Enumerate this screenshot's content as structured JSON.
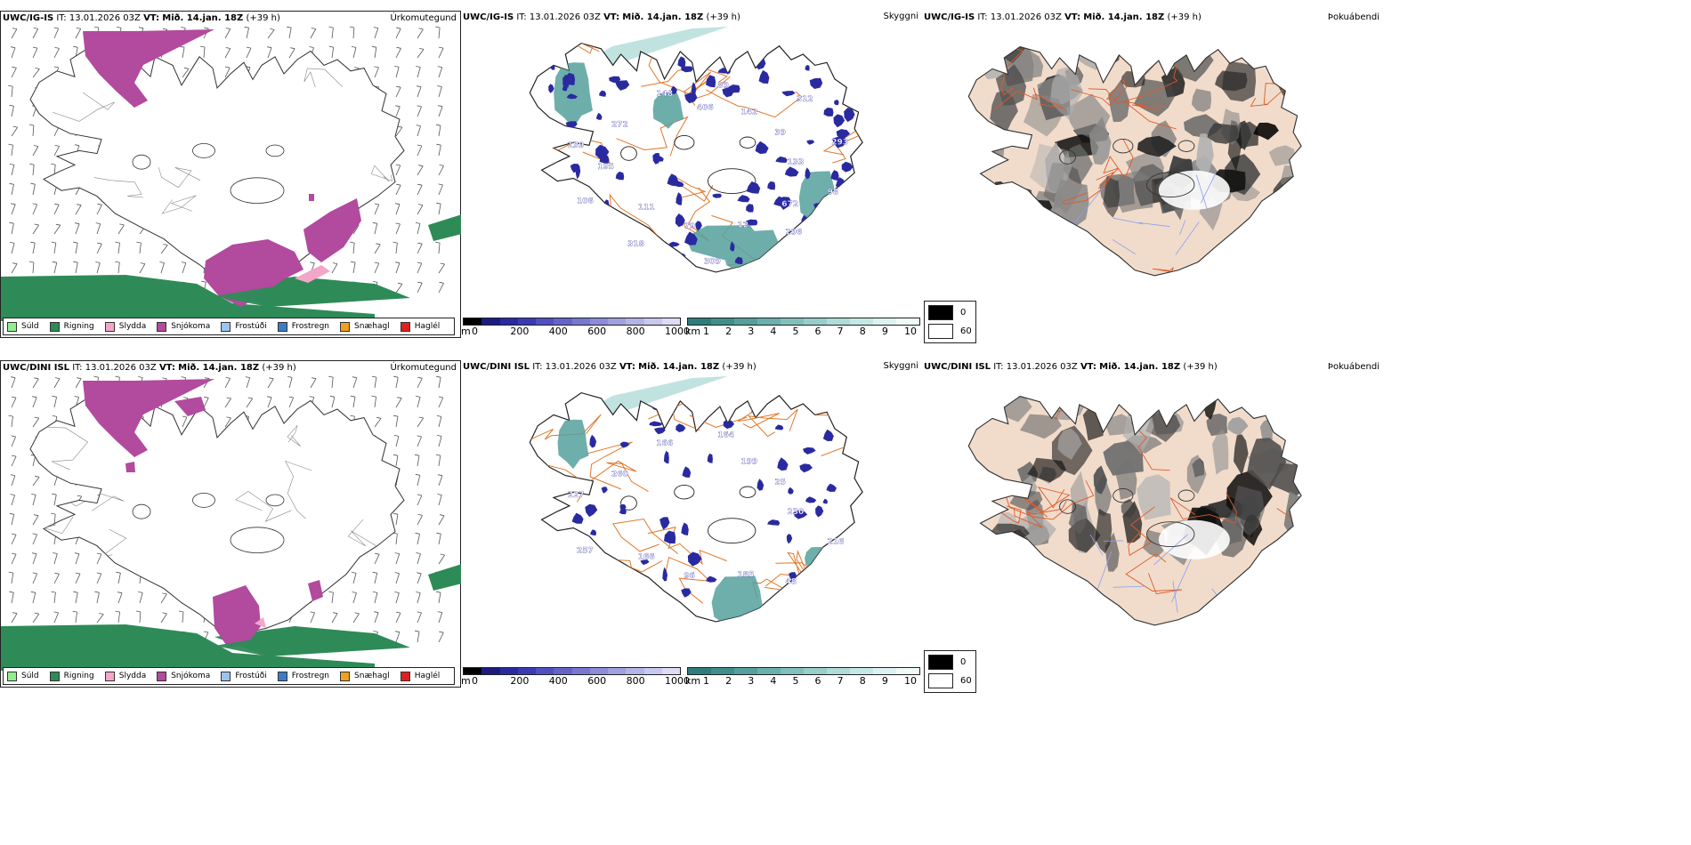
{
  "rows": [
    {
      "model": "UWC/IG-IS",
      "it_label": "IT:",
      "it_value": "13.01.2026 03Z",
      "vt_label": "VT:",
      "vt_value": "Mið. 14.jan. 18Z",
      "lead": "(+39 h)",
      "precip_labels": [
        "133",
        "111",
        "89",
        "296",
        "139",
        "39",
        "79",
        "148",
        "98",
        "106",
        "142",
        "12",
        "272",
        "293",
        "318",
        "406",
        "672",
        "195",
        "312",
        "309"
      ]
    },
    {
      "model": "UWC/DINI ISL",
      "it_label": "IT:",
      "it_value": "13.01.2026 03Z",
      "vt_label": "VT:",
      "vt_value": "Mið. 14.jan. 18Z",
      "lead": "(+39 h)",
      "precip_labels": [
        "230",
        "166",
        "164",
        "48",
        "227",
        "25",
        "96",
        "166",
        "216",
        "257",
        "199",
        "185",
        "260"
      ]
    }
  ],
  "panel_titles": {
    "precip_type": "Úrkomutegund",
    "cloud_base": "Skyggni",
    "fog": "Þokuábendi"
  },
  "precip_legend": [
    {
      "label": "Súld",
      "color": "#90ee90"
    },
    {
      "label": "Rigning",
      "color": "#2e8b57"
    },
    {
      "label": "Slydda",
      "color": "#f4a6c8"
    },
    {
      "label": "Snjókoma",
      "color": "#b24a9e"
    },
    {
      "label": "Frostúði",
      "color": "#9cc4ee"
    },
    {
      "label": "Frostregn",
      "color": "#3a7dc4"
    },
    {
      "label": "Snæhagl",
      "color": "#f0a020"
    },
    {
      "label": "Haglél",
      "color": "#e02020"
    }
  ],
  "m_bar": {
    "unit": "m",
    "ticks": [
      "0",
      "200",
      "400",
      "600",
      "800",
      "1000"
    ],
    "colors": [
      "#000000",
      "#1c1c80",
      "#2a2aa0",
      "#3a3ab4",
      "#5050c0",
      "#6464c8",
      "#7878d0",
      "#8c8cd8",
      "#a0a0e0",
      "#b4b4e8",
      "#c8c8f0",
      "#dcdcf6"
    ]
  },
  "km_bar": {
    "unit": "km",
    "ticks": [
      "1",
      "2",
      "3",
      "4",
      "5",
      "6",
      "7",
      "8",
      "9",
      "10"
    ],
    "colors": [
      "#2e7d7a",
      "#3f8e8a",
      "#55a09c",
      "#6ab0ac",
      "#80c0bc",
      "#98cec9",
      "#b0dcd8",
      "#c6e8e4",
      "#dcf2f0",
      "#f0faf9"
    ]
  },
  "fog_legend": [
    {
      "label": "0",
      "color": "#000000"
    },
    {
      "label": "60",
      "color": "#ffffff"
    }
  ]
}
